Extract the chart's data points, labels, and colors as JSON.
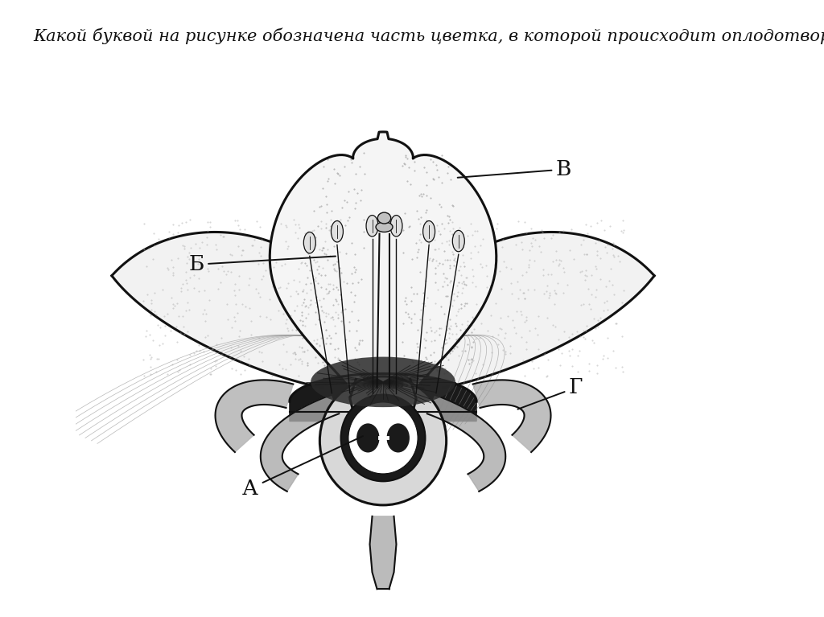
{
  "title": "Какой буквой на рисунке обозначена часть цветка, в которой происходит оплодотворение?",
  "title_fontsize": 15,
  "bg_color": "#ffffff",
  "label_A": "А",
  "label_B": "Б",
  "label_V": "В",
  "label_G": "Г",
  "label_fontsize": 19,
  "label_color": "#111111",
  "line_color": "#111111",
  "lw": 1.5
}
